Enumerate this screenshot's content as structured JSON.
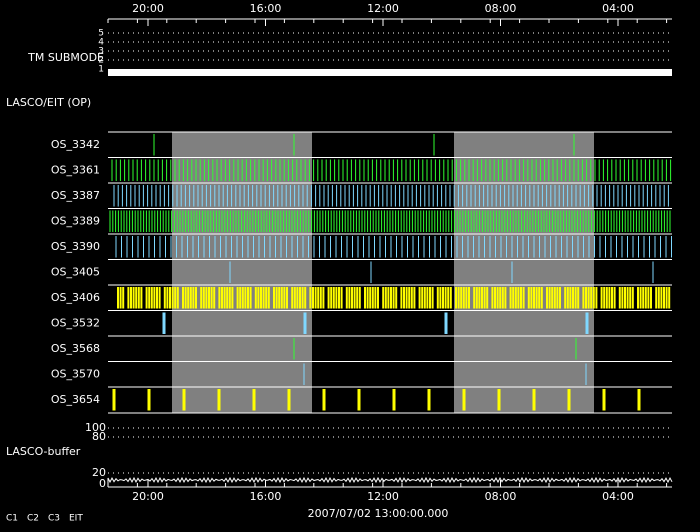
{
  "top_axis": {
    "labels": [
      "20:00",
      "16:00",
      "12:00",
      "08:00",
      "04:00"
    ]
  },
  "tm_submode": {
    "label": "TM SUBMODE",
    "levels": [
      "5",
      "4",
      "3",
      "2",
      "1"
    ]
  },
  "lasco_eit_label": "LASCO/EIT (OP)",
  "rows": [
    {
      "label": "OS_3342"
    },
    {
      "label": "OS_3361"
    },
    {
      "label": "OS_3387"
    },
    {
      "label": "OS_3389"
    },
    {
      "label": "OS_3390"
    },
    {
      "label": "OS_3405"
    },
    {
      "label": "OS_3406"
    },
    {
      "label": "OS_3532"
    },
    {
      "label": "OS_3568"
    },
    {
      "label": "OS_3570"
    },
    {
      "label": "OS_3654"
    }
  ],
  "buffer": {
    "label": "LASCO-buffer",
    "ticks": [
      "100",
      "80",
      "20",
      "0"
    ]
  },
  "bottom_axis": {
    "labels": [
      "20:00",
      "16:00",
      "12:00",
      "08:00",
      "04:00"
    ],
    "date": "2007/07/02 13:00:00.000"
  },
  "legend": [
    {
      "text": "C1",
      "color": "#ff3030"
    },
    {
      "text": "C2",
      "color": "#30ff30"
    },
    {
      "text": "C3",
      "color": "#ffffff"
    },
    {
      "text": "EIT",
      "color": "#ffffff"
    }
  ]
}
